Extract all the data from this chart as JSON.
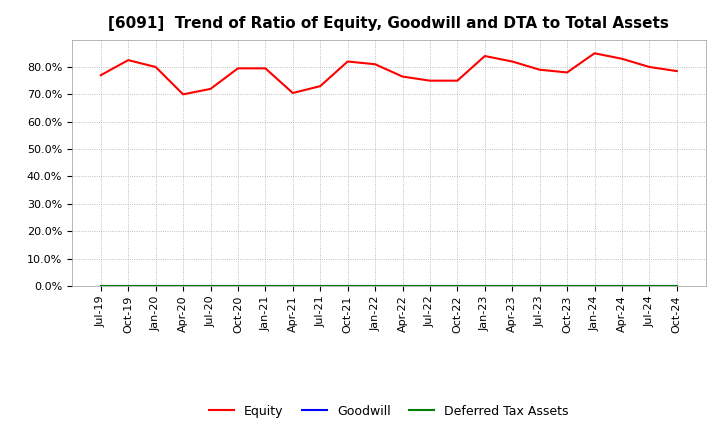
{
  "title": "[6091]  Trend of Ratio of Equity, Goodwill and DTA to Total Assets",
  "x_labels": [
    "Jul-19",
    "Oct-19",
    "Jan-20",
    "Apr-20",
    "Jul-20",
    "Oct-20",
    "Jan-21",
    "Apr-21",
    "Jul-21",
    "Oct-21",
    "Jan-22",
    "Apr-22",
    "Jul-22",
    "Oct-22",
    "Jan-23",
    "Apr-23",
    "Jul-23",
    "Oct-23",
    "Jan-24",
    "Apr-24",
    "Jul-24",
    "Oct-24"
  ],
  "equity": [
    0.77,
    0.825,
    0.8,
    0.7,
    0.72,
    0.795,
    0.795,
    0.705,
    0.73,
    0.82,
    0.81,
    0.765,
    0.75,
    0.75,
    0.84,
    0.82,
    0.79,
    0.78,
    0.85,
    0.83,
    0.8,
    0.785
  ],
  "goodwill": [
    0.0,
    0.0,
    0.0,
    0.0,
    0.0,
    0.0,
    0.0,
    0.0,
    0.0,
    0.0,
    0.0,
    0.0,
    0.0,
    0.0,
    0.0,
    0.0,
    0.0,
    0.0,
    0.0,
    0.0,
    0.0,
    0.0
  ],
  "dta": [
    0.0,
    0.0,
    0.0,
    0.0,
    0.0,
    0.0,
    0.0,
    0.0,
    0.0,
    0.0,
    0.0,
    0.0,
    0.0,
    0.0,
    0.0,
    0.0,
    0.0,
    0.0,
    0.0,
    0.0,
    0.0,
    0.0
  ],
  "equity_color": "#ff0000",
  "goodwill_color": "#0000ff",
  "dta_color": "#008000",
  "ylim": [
    0.0,
    0.9
  ],
  "yticks": [
    0.0,
    0.1,
    0.2,
    0.3,
    0.4,
    0.5,
    0.6,
    0.7,
    0.8
  ],
  "grid_color": "#aaaaaa",
  "background_color": "#ffffff",
  "legend_labels": [
    "Equity",
    "Goodwill",
    "Deferred Tax Assets"
  ],
  "title_fontsize": 11,
  "tick_fontsize": 8,
  "legend_fontsize": 9
}
